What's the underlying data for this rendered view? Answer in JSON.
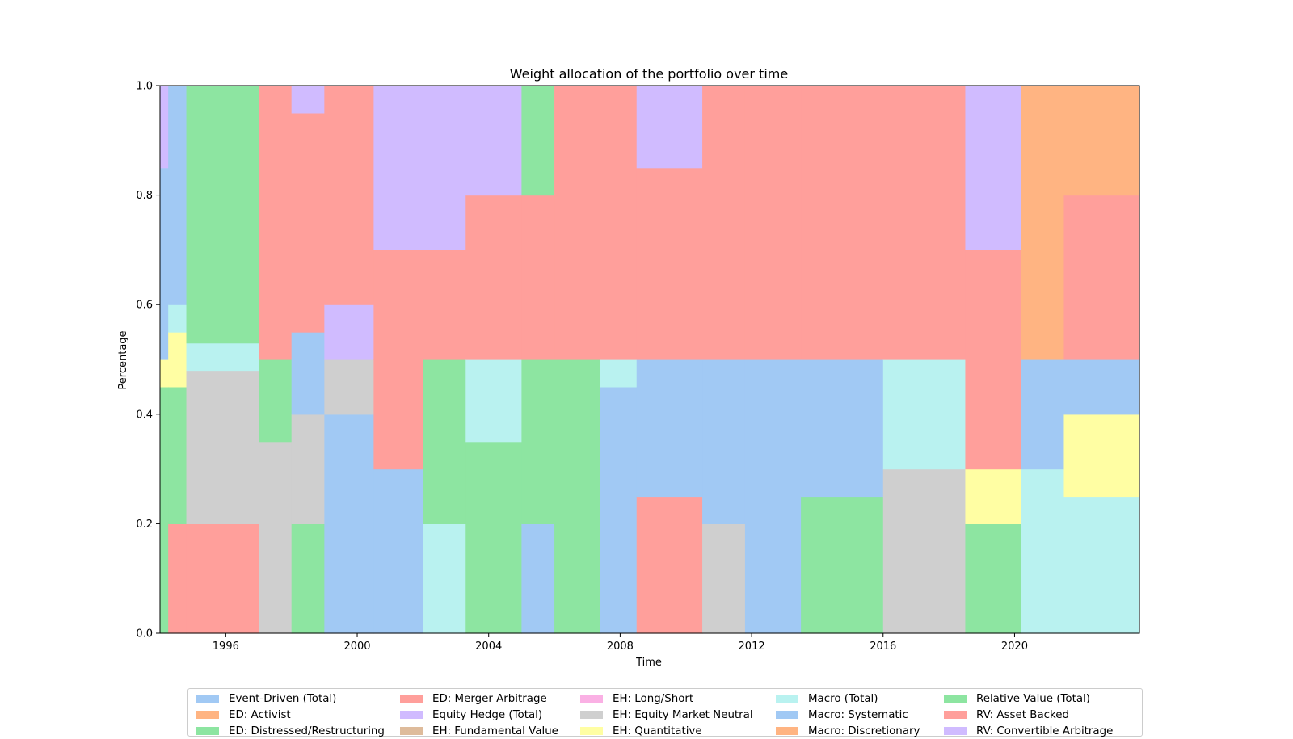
{
  "chart_data": {
    "type": "area",
    "stacked": true,
    "title": "Weight allocation of the portfolio over time",
    "xlabel": "Time",
    "ylabel": "Percentage",
    "xlim": [
      1994.0,
      2023.8
    ],
    "ylim": [
      0.0,
      1.0
    ],
    "x_ticks": [
      "1996",
      "2000",
      "2004",
      "2008",
      "2012",
      "2016",
      "2020"
    ],
    "y_ticks": [
      "0.0",
      "0.2",
      "0.4",
      "0.6",
      "0.8",
      "1.0"
    ],
    "legend_position": "bottom-center",
    "series": [
      {
        "name": "Event-Driven (Total)",
        "color": "#a1c9f4"
      },
      {
        "name": "ED: Activist",
        "color": "#ffb482"
      },
      {
        "name": "ED: Distressed/Restructuring",
        "color": "#8de5a1"
      },
      {
        "name": "ED: Merger Arbitrage",
        "color": "#ff9f9b"
      },
      {
        "name": "Equity Hedge (Total)",
        "color": "#d0bbff"
      },
      {
        "name": "EH: Fundamental Value",
        "color": "#debb9b"
      },
      {
        "name": "EH: Long/Short",
        "color": "#fab0e4"
      },
      {
        "name": "EH: Equity Market Neutral",
        "color": "#cfcfcf"
      },
      {
        "name": "EH: Quantitative",
        "color": "#fffea3"
      },
      {
        "name": "Macro (Total)",
        "color": "#b9f2f0"
      },
      {
        "name": "Macro: Systematic",
        "color": "#a1c9f4"
      },
      {
        "name": "Macro: Discretionary",
        "color": "#ffb482"
      },
      {
        "name": "Relative Value (Total)",
        "color": "#8de5a1"
      },
      {
        "name": "RV: Asset Backed",
        "color": "#ff9f9b"
      },
      {
        "name": "RV: Convertible Arbitrage",
        "color": "#d0bbff"
      }
    ],
    "regimes": [
      {
        "x": [
          1994.0,
          1994.25
        ],
        "bands": [
          [
            2,
            0.45
          ],
          [
            8,
            0.05
          ],
          [
            0,
            0.35
          ],
          [
            4,
            0.15
          ]
        ]
      },
      {
        "x": [
          1994.25,
          1994.8
        ],
        "bands": [
          [
            3,
            0.2
          ],
          [
            12,
            0.25
          ],
          [
            8,
            0.1
          ],
          [
            9,
            0.05
          ],
          [
            0,
            0.4
          ]
        ]
      },
      {
        "x": [
          1994.8,
          1997.0
        ],
        "bands": [
          [
            13,
            0.2
          ],
          [
            7,
            0.28
          ],
          [
            9,
            0.05
          ],
          [
            12,
            0.47
          ]
        ]
      },
      {
        "x": [
          1997.0,
          1998.0
        ],
        "bands": [
          [
            7,
            0.35
          ],
          [
            12,
            0.15
          ],
          [
            3,
            0.5
          ]
        ]
      },
      {
        "x": [
          1998.0,
          1999.0
        ],
        "bands": [
          [
            12,
            0.2
          ],
          [
            7,
            0.2
          ],
          [
            0,
            0.15
          ],
          [
            3,
            0.4
          ],
          [
            4,
            0.05
          ]
        ]
      },
      {
        "x": [
          1999.0,
          2000.5
        ],
        "bands": [
          [
            0,
            0.4
          ],
          [
            7,
            0.1
          ],
          [
            4,
            0.1
          ],
          [
            3,
            0.4
          ]
        ]
      },
      {
        "x": [
          2000.5,
          2002.0
        ],
        "bands": [
          [
            0,
            0.3
          ],
          [
            3,
            0.2
          ],
          [
            3,
            0.2
          ],
          [
            4,
            0.3
          ]
        ]
      },
      {
        "x": [
          2002.0,
          2003.3
        ],
        "bands": [
          [
            9,
            0.2
          ],
          [
            12,
            0.3
          ],
          [
            3,
            0.2
          ],
          [
            4,
            0.3
          ]
        ]
      },
      {
        "x": [
          2003.3,
          2005.0
        ],
        "bands": [
          [
            12,
            0.35
          ],
          [
            9,
            0.15
          ],
          [
            3,
            0.3
          ],
          [
            4,
            0.2
          ]
        ]
      },
      {
        "x": [
          2005.0,
          2006.0
        ],
        "bands": [
          [
            0,
            0.2
          ],
          [
            12,
            0.3
          ],
          [
            3,
            0.3
          ],
          [
            12,
            0.2
          ]
        ]
      },
      {
        "x": [
          2006.0,
          2007.4
        ],
        "bands": [
          [
            12,
            0.5
          ],
          [
            3,
            0.5
          ]
        ]
      },
      {
        "x": [
          2007.4,
          2008.5
        ],
        "bands": [
          [
            0,
            0.45
          ],
          [
            9,
            0.05
          ],
          [
            3,
            0.5
          ]
        ]
      },
      {
        "x": [
          2008.5,
          2010.5
        ],
        "bands": [
          [
            3,
            0.25
          ],
          [
            0,
            0.25
          ],
          [
            3,
            0.35
          ],
          [
            4,
            0.15
          ]
        ]
      },
      {
        "x": [
          2010.5,
          2011.8
        ],
        "bands": [
          [
            7,
            0.2
          ],
          [
            0,
            0.3
          ],
          [
            3,
            0.5
          ]
        ]
      },
      {
        "x": [
          2011.8,
          2013.5
        ],
        "bands": [
          [
            0,
            0.5
          ],
          [
            3,
            0.5
          ]
        ]
      },
      {
        "x": [
          2013.5,
          2016.0
        ],
        "bands": [
          [
            12,
            0.25
          ],
          [
            0,
            0.25
          ],
          [
            3,
            0.5
          ]
        ]
      },
      {
        "x": [
          2016.0,
          2018.5
        ],
        "bands": [
          [
            7,
            0.3
          ],
          [
            9,
            0.2
          ],
          [
            3,
            0.5
          ]
        ]
      },
      {
        "x": [
          2018.5,
          2020.2
        ],
        "bands": [
          [
            12,
            0.2
          ],
          [
            8,
            0.1
          ],
          [
            3,
            0.4
          ],
          [
            4,
            0.3
          ]
        ]
      },
      {
        "x": [
          2020.2,
          2021.5
        ],
        "bands": [
          [
            9,
            0.3
          ],
          [
            0,
            0.2
          ],
          [
            1,
            0.5
          ]
        ]
      },
      {
        "x": [
          2021.5,
          2023.8
        ],
        "bands": [
          [
            9,
            0.25
          ],
          [
            8,
            0.15
          ],
          [
            0,
            0.1
          ],
          [
            3,
            0.3
          ],
          [
            1,
            0.2
          ]
        ]
      }
    ]
  }
}
